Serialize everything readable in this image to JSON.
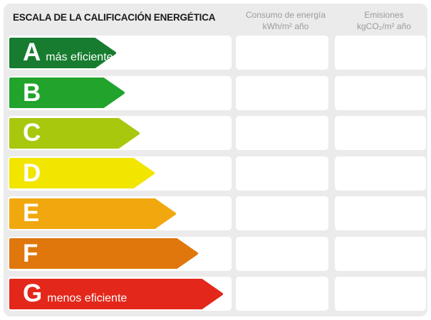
{
  "panel": {
    "background_color": "#ebebeb",
    "title": "ESCALA DE LA CALIFICACIÓN ENERGÉTICA"
  },
  "columns": {
    "consumo": {
      "line1": "Consumo de energía",
      "line2": "kWh/m² año"
    },
    "emisiones": {
      "line1": "Emisiones",
      "line2": "kgCO₂/m² año"
    }
  },
  "scale": {
    "rows": [
      {
        "letter": "A",
        "note": "más eficiente",
        "color": "#177C30",
        "arrow_width": 150,
        "consumo": "",
        "emisiones": ""
      },
      {
        "letter": "B",
        "note": "",
        "color": "#21A32C",
        "arrow_width": 162,
        "consumo": "",
        "emisiones": ""
      },
      {
        "letter": "C",
        "note": "",
        "color": "#A7C80D",
        "arrow_width": 183,
        "consumo": "",
        "emisiones": ""
      },
      {
        "letter": "D",
        "note": "",
        "color": "#F2E500",
        "arrow_width": 204,
        "consumo": "",
        "emisiones": ""
      },
      {
        "letter": "E",
        "note": "",
        "color": "#F0A80E",
        "arrow_width": 234,
        "consumo": "",
        "emisiones": ""
      },
      {
        "letter": "F",
        "note": "",
        "color": "#DF770C",
        "arrow_width": 265,
        "consumo": "",
        "emisiones": ""
      },
      {
        "letter": "G",
        "note": "menos eficiente",
        "color": "#E4271B",
        "arrow_width": 300,
        "consumo": "",
        "emisiones": ""
      }
    ]
  }
}
